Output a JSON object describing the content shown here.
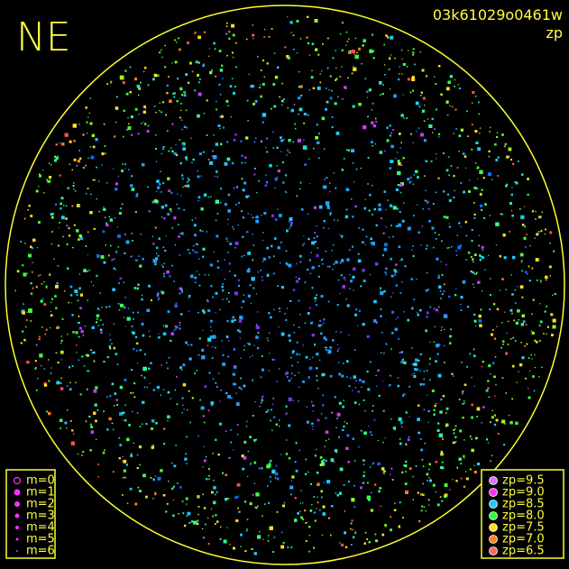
{
  "header": {
    "direction": "NE",
    "frame_id": "03k61029o0461w",
    "mode": "zp"
  },
  "legend_magnitude": {
    "entries": [
      "m=0",
      "m=1",
      "m=2",
      "m=3",
      "m=4",
      "m=5",
      "m=6"
    ],
    "color": "#ff30ff"
  },
  "legend_zp": {
    "entries": [
      "zp=9.5",
      "zp=9.0",
      "zp=8.5",
      "zp=8.0",
      "zp=7.5",
      "zp=7.0",
      "zp=6.5"
    ],
    "colors": [
      "#e070ff",
      "#ff30ff",
      "#20c8ff",
      "#30ff40",
      "#ffe020",
      "#ff8020",
      "#ff6868"
    ]
  }
}
